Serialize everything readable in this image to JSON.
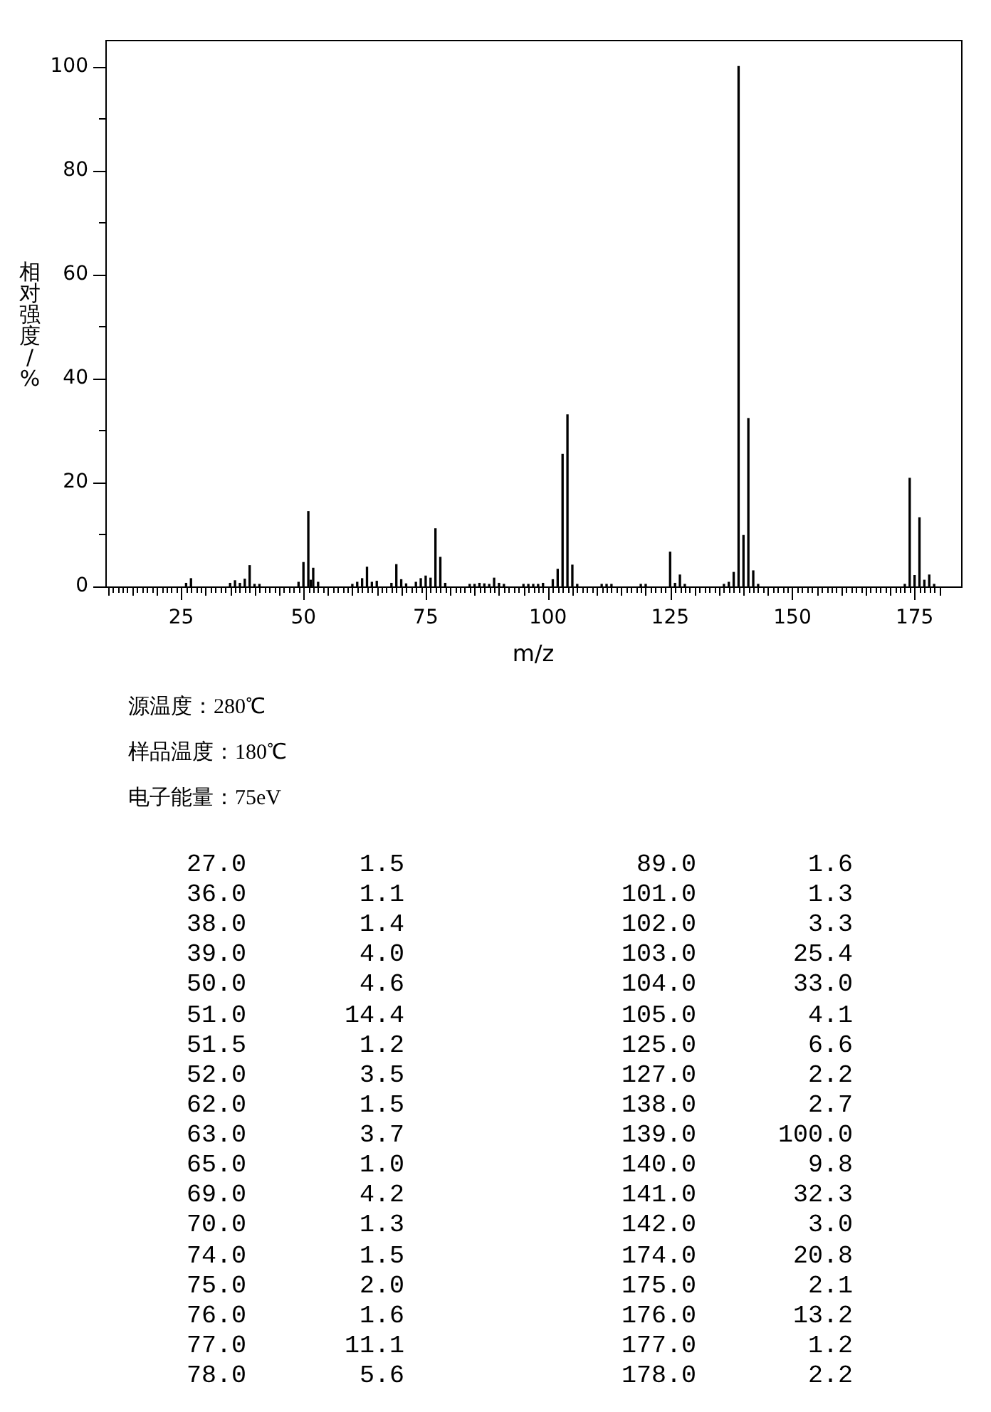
{
  "chart_data": [
    {
      "type": "bar",
      "xlabel": "m/z",
      "ylabel": "相对强度/%",
      "annotations": [
        "源温度：280℃",
        "样品温度：180℃",
        "电子能量：75eV"
      ],
      "x": [
        26,
        27,
        35,
        36,
        37,
        38,
        39,
        40,
        41,
        49,
        50,
        51,
        51.5,
        52,
        53,
        60,
        61,
        62,
        63,
        64,
        65,
        68,
        69,
        70,
        71,
        73,
        74,
        75,
        76,
        77,
        78,
        79,
        84,
        85,
        86,
        87,
        88,
        89,
        90,
        91,
        95,
        96,
        97,
        98,
        99,
        101,
        102,
        103,
        104,
        105,
        106,
        111,
        112,
        113,
        119,
        120,
        125,
        126,
        127,
        128,
        136,
        137,
        138,
        139,
        140,
        141,
        142,
        143,
        173,
        174,
        175,
        176,
        177,
        178,
        179
      ],
      "values": [
        0.6,
        1.5,
        0.6,
        1.1,
        0.6,
        1.4,
        4.0,
        0.4,
        0.4,
        0.8,
        4.6,
        14.4,
        1.2,
        3.5,
        0.8,
        0.4,
        0.8,
        1.5,
        3.7,
        0.8,
        1.0,
        0.6,
        4.2,
        1.3,
        0.5,
        0.8,
        1.5,
        2.0,
        1.6,
        11.1,
        5.6,
        0.6,
        0.4,
        0.4,
        0.6,
        0.5,
        0.4,
        1.6,
        0.6,
        0.4,
        0.4,
        0.4,
        0.4,
        0.4,
        0.6,
        1.3,
        3.3,
        25.4,
        33.0,
        4.1,
        0.4,
        0.4,
        0.4,
        0.4,
        0.4,
        0.4,
        6.6,
        0.6,
        2.2,
        0.4,
        0.4,
        0.8,
        2.7,
        100,
        9.8,
        32.3,
        3.0,
        0.4,
        0.4,
        20.8,
        2.1,
        13.2,
        1.2,
        2.2,
        0.4
      ],
      "color": "#000000",
      "xlim": [
        10,
        184
      ],
      "xticks": [
        {
          "value": 10,
          "label": null
        },
        {
          "value": 11,
          "label": null
        },
        {
          "value": 12,
          "label": null
        },
        {
          "value": 13,
          "label": null
        },
        {
          "value": 14,
          "label": null
        },
        {
          "value": 15,
          "label": null
        },
        {
          "value": 16,
          "label": null
        },
        {
          "value": 17,
          "label": null
        },
        {
          "value": 18,
          "label": null
        },
        {
          "value": 19,
          "label": null
        },
        {
          "value": 20,
          "label": null
        },
        {
          "value": 21,
          "label": null
        },
        {
          "value": 22,
          "label": null
        },
        {
          "value": 23,
          "label": null
        },
        {
          "value": 24,
          "label": null
        },
        25,
        {
          "value": 26,
          "label": null
        },
        {
          "value": 27,
          "label": null
        },
        {
          "value": 28,
          "label": null
        },
        {
          "value": 29,
          "label": null
        },
        {
          "value": 30,
          "label": null
        },
        {
          "value": 31,
          "label": null
        },
        {
          "value": 32,
          "label": null
        },
        {
          "value": 33,
          "label": null
        },
        {
          "value": 34,
          "label": null
        },
        {
          "value": 35,
          "label": null
        },
        {
          "value": 36,
          "label": null
        },
        {
          "value": 37,
          "label": null
        },
        {
          "value": 38,
          "label": null
        },
        {
          "value": 39,
          "label": null
        },
        {
          "value": 40,
          "label": null
        },
        {
          "value": 41,
          "label": null
        },
        {
          "value": 42,
          "label": null
        },
        {
          "value": 43,
          "label": null
        },
        {
          "value": 44,
          "label": null
        },
        {
          "value": 45,
          "label": null
        },
        {
          "value": 46,
          "label": null
        },
        {
          "value": 47,
          "label": null
        },
        {
          "value": 48,
          "label": null
        },
        {
          "value": 49,
          "label": null
        },
        50,
        {
          "value": 51,
          "label": null
        },
        {
          "value": 52,
          "label": null
        },
        {
          "value": 53,
          "label": null
        },
        {
          "value": 54,
          "label": null
        },
        {
          "value": 55,
          "label": null
        },
        {
          "value": 56,
          "label": null
        },
        {
          "value": 57,
          "label": null
        },
        {
          "value": 58,
          "label": null
        },
        {
          "value": 59,
          "label": null
        },
        {
          "value": 60,
          "label": null
        },
        {
          "value": 61,
          "label": null
        },
        {
          "value": 62,
          "label": null
        },
        {
          "value": 63,
          "label": null
        },
        {
          "value": 64,
          "label": null
        },
        {
          "value": 65,
          "label": null
        },
        {
          "value": 66,
          "label": null
        },
        {
          "value": 67,
          "label": null
        },
        {
          "value": 68,
          "label": null
        },
        {
          "value": 69,
          "label": null
        },
        {
          "value": 70,
          "label": null
        },
        {
          "value": 71,
          "label": null
        },
        {
          "value": 72,
          "label": null
        },
        {
          "value": 73,
          "label": null
        },
        {
          "value": 74,
          "label": null
        },
        75,
        {
          "value": 76,
          "label": null
        },
        {
          "value": 77,
          "label": null
        },
        {
          "value": 78,
          "label": null
        },
        {
          "value": 79,
          "label": null
        },
        {
          "value": 80,
          "label": null
        },
        {
          "value": 81,
          "label": null
        },
        {
          "value": 82,
          "label": null
        },
        {
          "value": 83,
          "label": null
        },
        {
          "value": 84,
          "label": null
        },
        {
          "value": 85,
          "label": null
        },
        {
          "value": 86,
          "label": null
        },
        {
          "value": 87,
          "label": null
        },
        {
          "value": 88,
          "label": null
        },
        {
          "value": 89,
          "label": null
        },
        {
          "value": 90,
          "label": null
        },
        {
          "value": 91,
          "label": null
        },
        {
          "value": 92,
          "label": null
        },
        {
          "value": 93,
          "label": null
        },
        {
          "value": 94,
          "label": null
        },
        {
          "value": 95,
          "label": null
        },
        {
          "value": 96,
          "label": null
        },
        {
          "value": 97,
          "label": null
        },
        {
          "value": 98,
          "label": null
        },
        {
          "value": 99,
          "label": null
        },
        100,
        {
          "value": 101,
          "label": null
        },
        {
          "value": 102,
          "label": null
        },
        {
          "value": 103,
          "label": null
        },
        {
          "value": 104,
          "label": null
        },
        {
          "value": 105,
          "label": null
        },
        {
          "value": 106,
          "label": null
        },
        {
          "value": 107,
          "label": null
        },
        {
          "value": 108,
          "label": null
        },
        {
          "value": 109,
          "label": null
        },
        {
          "value": 110,
          "label": null
        },
        {
          "value": 111,
          "label": null
        },
        {
          "value": 112,
          "label": null
        },
        {
          "value": 113,
          "label": null
        },
        {
          "value": 114,
          "label": null
        },
        {
          "value": 115,
          "label": null
        },
        {
          "value": 116,
          "label": null
        },
        {
          "value": 117,
          "label": null
        },
        {
          "value": 118,
          "label": null
        },
        {
          "value": 119,
          "label": null
        },
        {
          "value": 120,
          "label": null
        },
        {
          "value": 121,
          "label": null
        },
        {
          "value": 122,
          "label": null
        },
        {
          "value": 123,
          "label": null
        },
        {
          "value": 124,
          "label": null
        },
        125,
        {
          "value": 126,
          "label": null
        },
        {
          "value": 127,
          "label": null
        },
        {
          "value": 128,
          "label": null
        },
        {
          "value": 129,
          "label": null
        },
        {
          "value": 130,
          "label": null
        },
        {
          "value": 131,
          "label": null
        },
        {
          "value": 132,
          "label": null
        },
        {
          "value": 133,
          "label": null
        },
        {
          "value": 134,
          "label": null
        },
        {
          "value": 135,
          "label": null
        },
        {
          "value": 136,
          "label": null
        },
        {
          "value": 137,
          "label": null
        },
        {
          "value": 138,
          "label": null
        },
        {
          "value": 139,
          "label": null
        },
        {
          "value": 140,
          "label": null
        },
        {
          "value": 141,
          "label": null
        },
        {
          "value": 142,
          "label": null
        },
        {
          "value": 143,
          "label": null
        },
        {
          "value": 144,
          "label": null
        },
        {
          "value": 145,
          "label": null
        },
        {
          "value": 146,
          "label": null
        },
        {
          "value": 147,
          "label": null
        },
        {
          "value": 148,
          "label": null
        },
        {
          "value": 149,
          "label": null
        },
        150,
        {
          "value": 151,
          "label": null
        },
        {
          "value": 152,
          "label": null
        },
        {
          "value": 153,
          "label": null
        },
        {
          "value": 154,
          "label": null
        },
        {
          "value": 155,
          "label": null
        },
        {
          "value": 156,
          "label": null
        },
        {
          "value": 157,
          "label": null
        },
        {
          "value": 158,
          "label": null
        },
        {
          "value": 159,
          "label": null
        },
        {
          "value": 160,
          "label": null
        },
        {
          "value": 161,
          "label": null
        },
        {
          "value": 162,
          "label": null
        },
        {
          "value": 163,
          "label": null
        },
        {
          "value": 164,
          "label": null
        },
        {
          "value": 165,
          "label": null
        },
        {
          "value": 166,
          "label": null
        },
        {
          "value": 167,
          "label": null
        },
        {
          "value": 168,
          "label": null
        },
        {
          "value": 169,
          "label": null
        },
        {
          "value": 170,
          "label": null
        },
        {
          "value": 171,
          "label": null
        },
        {
          "value": 172,
          "label": null
        },
        {
          "value": 173,
          "label": null
        },
        {
          "value": 174,
          "label": null
        },
        175,
        {
          "value": 176,
          "label": null
        },
        {
          "value": 177,
          "label": null
        },
        {
          "value": 178,
          "label": null
        },
        {
          "value": 179,
          "label": null
        },
        {
          "value": 180,
          "label": null
        }
      ],
      "ylim": [
        0,
        105
      ],
      "yticks": [
        0,
        {
          "value": 10,
          "label": null
        },
        20,
        {
          "value": 30,
          "label": null
        },
        40,
        {
          "value": 50,
          "label": null
        },
        60,
        {
          "value": 70,
          "label": null
        },
        80,
        {
          "value": 90,
          "label": null
        },
        100
      ],
      "grid": false
    },
    {
      "type": "other",
      "categories": [
        "27.0",
        "36.0",
        "38.0",
        "39.0",
        "50.0",
        "51.0",
        "51.5",
        "52.0",
        "62.0",
        "63.0",
        "65.0",
        "69.0",
        "70.0",
        "74.0",
        "75.0",
        "76.0",
        "77.0",
        "78.0",
        "89.0",
        "101.0",
        "102.0",
        "103.0",
        "104.0",
        "105.0",
        "125.0",
        "127.0",
        "138.0",
        "139.0",
        "140.0",
        "141.0",
        "142.0",
        "174.0",
        "175.0",
        "176.0",
        "177.0",
        "178.0"
      ],
      "value_labels": [
        "1.5",
        "1.1",
        "1.4",
        "4.0",
        "4.6",
        "14.4",
        "1.2",
        "3.5",
        "1.5",
        "3.7",
        "1.0",
        "4.2",
        "1.3",
        "1.5",
        "2.0",
        "1.6",
        "11.1",
        "5.6",
        "1.6",
        "1.3",
        "3.3",
        "25.4",
        "33.0",
        "4.1",
        "6.6",
        "2.2",
        "2.7",
        "100.0",
        "9.8",
        "32.3",
        "3.0",
        "20.8",
        "2.1",
        "13.2",
        "1.2",
        "2.2"
      ]
    }
  ]
}
